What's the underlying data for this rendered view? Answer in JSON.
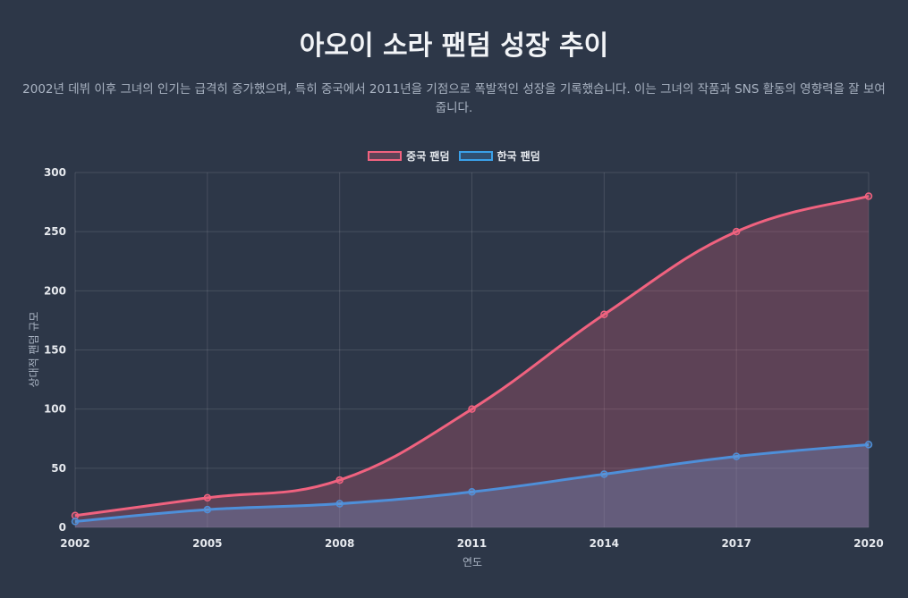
{
  "chart_data": {
    "type": "line",
    "title": "아오이 소라 팬덤 성장 추이",
    "subtitle": "2002년 데뷔 이후 그녀의 인기는 급격히 증가했으며, 특히 중국에서 2011년을 기점으로 폭발적인 성장을 기록했습니다. 이는 그녀의 작품과 SNS 활동의 영향력을 잘 보여줍니다.",
    "xlabel": "연도",
    "ylabel": "상대적 팬덤 규모",
    "x": [
      "2002",
      "2005",
      "2008",
      "2011",
      "2014",
      "2017",
      "2020"
    ],
    "ylim": [
      0,
      300
    ],
    "yticks": [
      "0",
      "50",
      "100",
      "150",
      "200",
      "250",
      "300"
    ],
    "grid": true,
    "legend": "top",
    "series": [
      {
        "name": "중국 팬덤",
        "values": [
          10,
          25,
          40,
          100,
          180,
          250,
          280
        ],
        "color": "#f0627f",
        "fill": "rgba(240,98,127,0.25)"
      },
      {
        "name": "한국 팬덤",
        "values": [
          5,
          15,
          20,
          30,
          45,
          60,
          70
        ],
        "color": "#4e8fd9",
        "fill": "rgba(120,160,220,0.28)"
      }
    ]
  }
}
